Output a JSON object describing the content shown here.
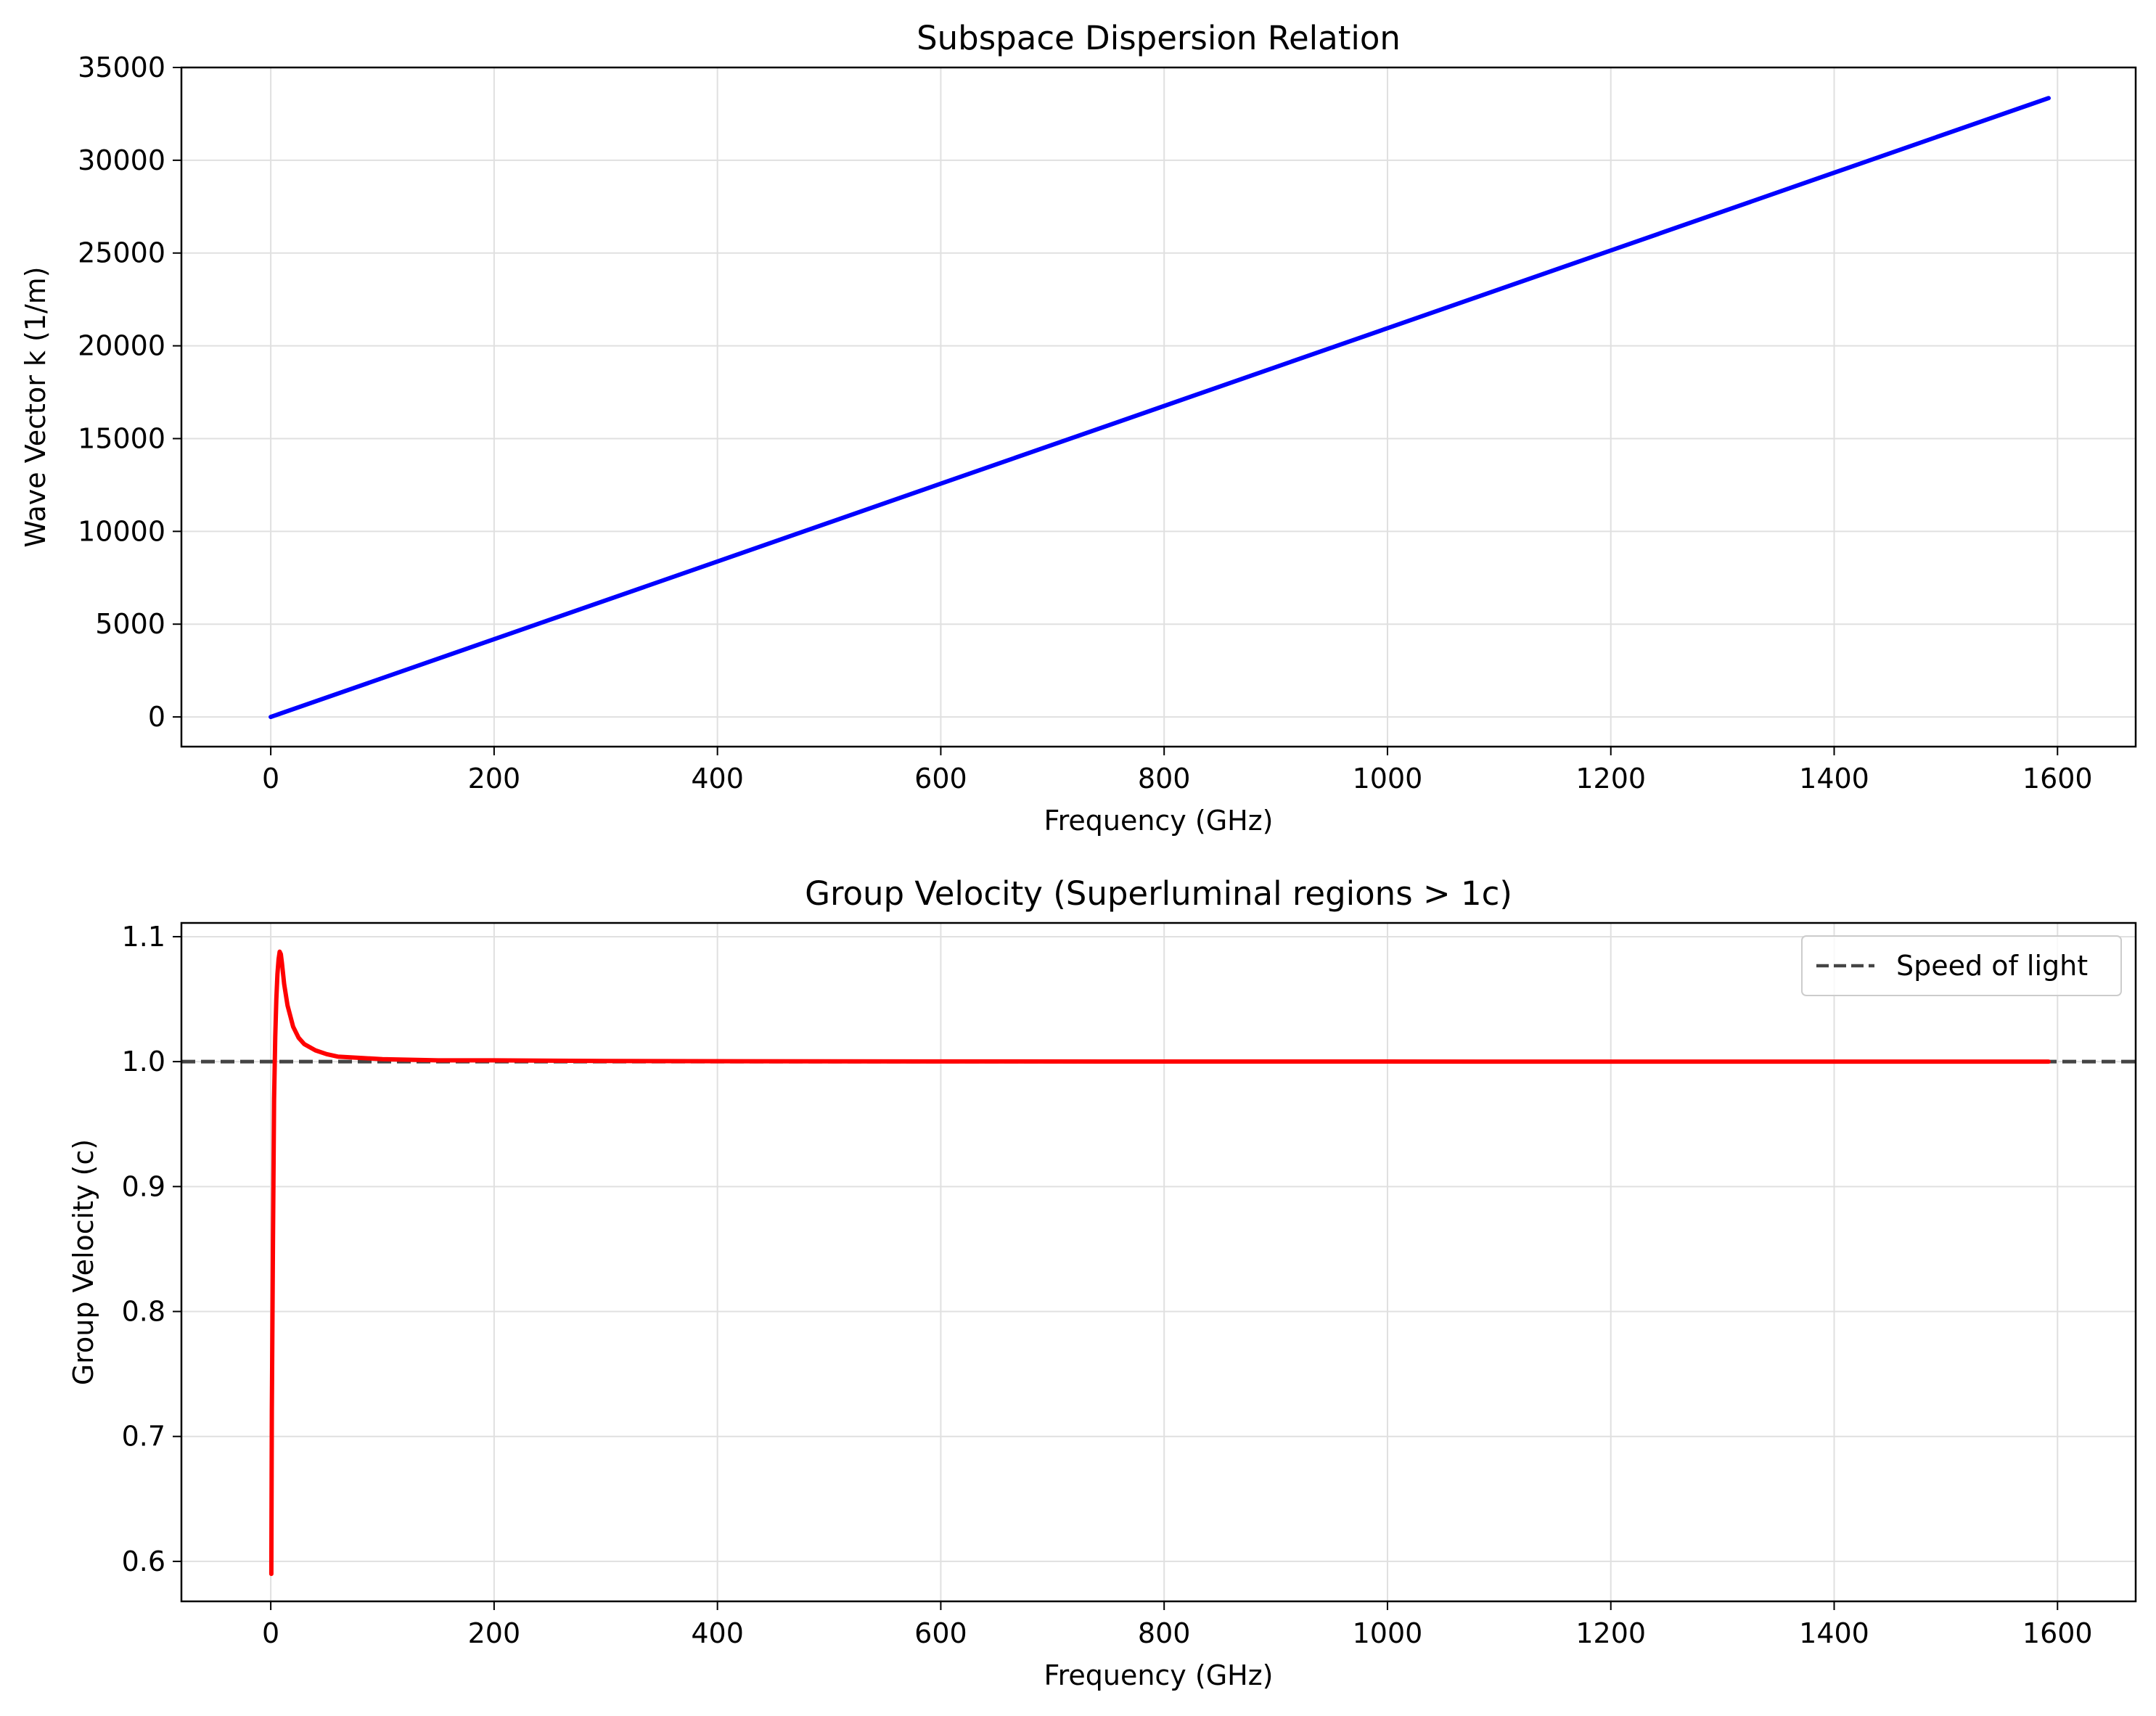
{
  "chart_data": [
    {
      "type": "line",
      "title": "Subspace Dispersion Relation",
      "xlabel": "Frequency (GHz)",
      "ylabel": "Wave Vector k (1/m)",
      "xlim": [
        -80,
        1670
      ],
      "ylim": [
        -1600,
        35000
      ],
      "xticks": [
        0,
        200,
        400,
        600,
        800,
        1000,
        1200,
        1400,
        1600
      ],
      "yticks": [
        0,
        5000,
        10000,
        15000,
        20000,
        25000,
        30000,
        35000
      ],
      "grid": true,
      "legend": null,
      "series": [
        {
          "color": "#0000ff",
          "style": "solid",
          "x": [
            0,
            200,
            400,
            600,
            800,
            1000,
            1200,
            1400,
            1592
          ],
          "y": [
            0,
            4190,
            8380,
            12570,
            16760,
            20950,
            25140,
            29330,
            33350
          ]
        }
      ]
    },
    {
      "type": "line",
      "title": "Group Velocity (Superluminal regions > 1c)",
      "xlabel": "Frequency (GHz)",
      "ylabel": "Group Velocity (c)",
      "xlim": [
        -80,
        1670
      ],
      "ylim": [
        0.568,
        1.111
      ],
      "xticks": [
        0,
        200,
        400,
        600,
        800,
        1000,
        1200,
        1400,
        1600
      ],
      "yticks": [
        0.6,
        0.7,
        0.8,
        0.9,
        1.0,
        1.1
      ],
      "grid": true,
      "legend": {
        "position": "upper right",
        "entries": [
          "Speed of light"
        ]
      },
      "series": [
        {
          "color": "#ff0000",
          "style": "solid",
          "x": [
            0.5,
            1,
            2,
            3,
            4,
            5,
            6,
            7,
            8,
            9,
            10,
            12,
            15,
            20,
            25,
            30,
            40,
            50,
            60,
            80,
            100,
            150,
            200,
            300,
            500,
            800,
            1200,
            1592
          ],
          "y": [
            0.59,
            0.72,
            0.86,
            0.97,
            1.02,
            1.05,
            1.07,
            1.082,
            1.088,
            1.086,
            1.079,
            1.062,
            1.045,
            1.028,
            1.019,
            1.014,
            1.009,
            1.006,
            1.004,
            1.003,
            1.002,
            1.001,
            1.001,
            1.0005,
            1.0002,
            1.0001,
            1.0,
            1.0
          ]
        },
        {
          "name": "Speed of light",
          "color": "#444444",
          "style": "dashed",
          "hline": 1.0
        }
      ]
    }
  ]
}
